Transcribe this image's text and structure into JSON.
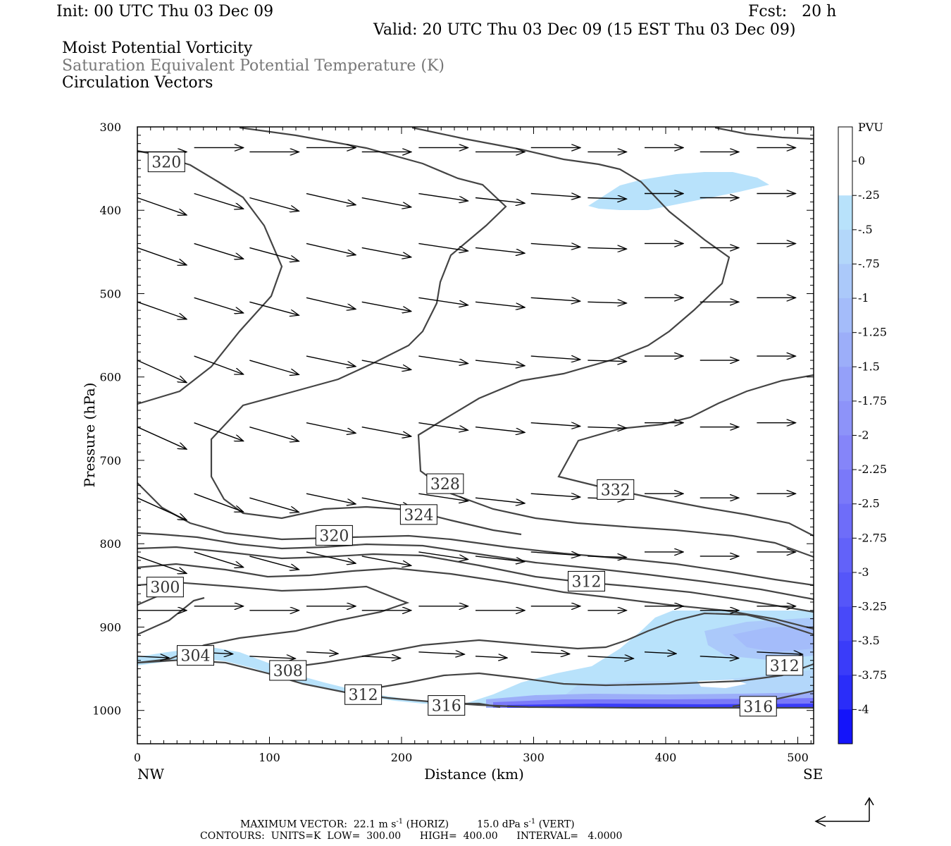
{
  "header": {
    "init": "Init: 00 UTC Thu 03 Dec 09",
    "fcst": "Fcst:   20 h",
    "valid": "Valid: 20 UTC Thu 03 Dec 09 (15 EST Thu 03 Dec 09)",
    "field1": "Moist Potential Vorticity",
    "field2": "Saturation Equivalent Potential Temperature (K)",
    "field3": "Circulation Vectors"
  },
  "colorbar": {
    "title": "PVU",
    "labels": [
      "0",
      "-.25",
      "-.5",
      "-.75",
      "-1",
      "-1.25",
      "-1.5",
      "-1.75",
      "-2",
      "-2.25",
      "-2.5",
      "-2.75",
      "-3",
      "-3.25",
      "-3.5",
      "-3.75",
      "-4"
    ],
    "colors": [
      "#ffffff",
      "#ffffff",
      "#b8e2fb",
      "#b3d7fa",
      "#abc9fa",
      "#a4bcfa",
      "#9caef9",
      "#94a0f9",
      "#8d93f9",
      "#8585f9",
      "#7a79f9",
      "#6e6df9",
      "#6262f9",
      "#5556f9",
      "#4849f9",
      "#3a3cf9",
      "#2a2df9",
      "#1414fa"
    ]
  },
  "footer": {
    "line1_pre": "MAXIMUM VECTOR:  22.1 m s",
    "line1_sup1": "-1",
    "line1_mid": " (HORIZ)         15.0 dPa s",
    "line1_sup2": "-1",
    "line1_post": " (VERT)",
    "line2": "CONTOURS:  UNITS=K  LOW=  300.00      HIGH=  400.00      INTERVAL=   4.0000"
  },
  "chart_data": {
    "type": "cross-section contour",
    "xlabel": "Distance (km)",
    "ylabel": "Pressure (hPa)",
    "x_ticks": [
      "0",
      "100",
      "200",
      "300",
      "400",
      "500"
    ],
    "y_ticks": [
      "300",
      "400",
      "500",
      "600",
      "700",
      "800",
      "900",
      "1000"
    ],
    "x_end_labels": [
      "NW",
      "SE"
    ],
    "xlim": [
      0,
      512
    ],
    "ylim": [
      1040,
      300
    ],
    "contour_units": "K",
    "contour_low": 300,
    "contour_high": 400,
    "contour_interval": 4,
    "contour_labels": [
      {
        "text": "320",
        "x": 22,
        "p": 342
      },
      {
        "text": "328",
        "x": 233,
        "p": 728
      },
      {
        "text": "324",
        "x": 213,
        "p": 765
      },
      {
        "text": "320",
        "x": 149,
        "p": 790
      },
      {
        "text": "332",
        "x": 362,
        "p": 735
      },
      {
        "text": "312",
        "x": 340,
        "p": 845
      },
      {
        "text": "300",
        "x": 21,
        "p": 852
      },
      {
        "text": "304",
        "x": 44,
        "p": 934
      },
      {
        "text": "308",
        "x": 114,
        "p": 952
      },
      {
        "text": "312",
        "x": 171,
        "p": 981
      },
      {
        "text": "316",
        "x": 234,
        "p": 994
      },
      {
        "text": "312",
        "x": 490,
        "p": 946
      },
      {
        "text": "316",
        "x": 470,
        "p": 995
      }
    ],
    "vector_rows_hPa": [
      330,
      385,
      445,
      510,
      580,
      660,
      745,
      815,
      880,
      935
    ],
    "vector_columns_km": [
      0,
      43,
      85,
      128,
      170,
      213,
      256,
      298,
      341,
      384,
      426,
      469
    ]
  }
}
